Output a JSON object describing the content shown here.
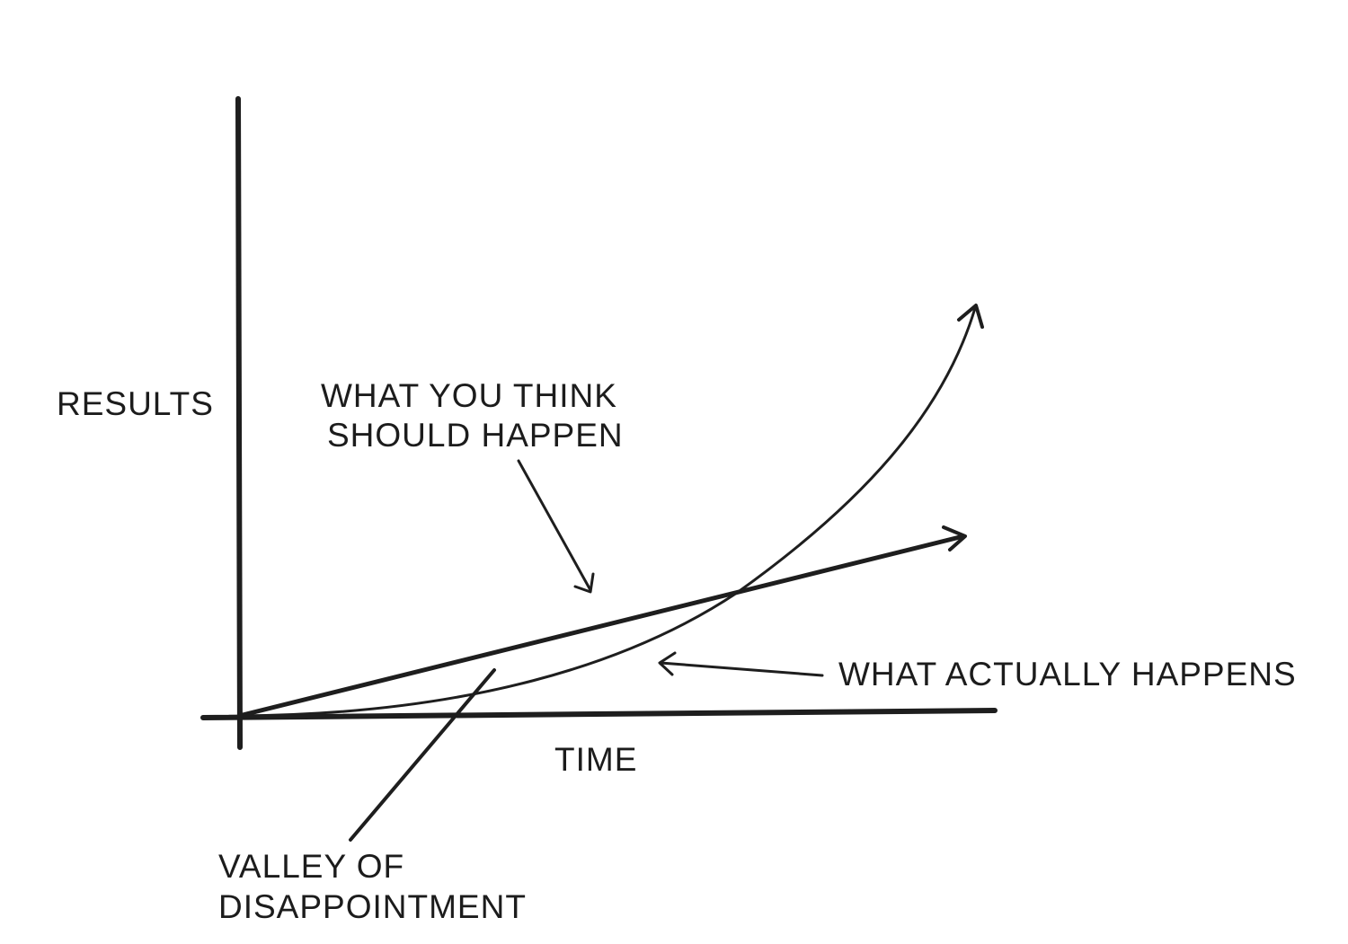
{
  "diagram": {
    "y_axis_label": "RESULTS",
    "x_axis_label": "TIME",
    "expected_line_label": [
      "WHAT YOU THINK",
      "SHOULD HAPPEN"
    ],
    "actual_curve_label": "WHAT ACTUALLY HAPPENS",
    "gap_label": [
      "VALLEY OF",
      "DISAPPOINTMENT"
    ],
    "ink_color": "#1e1e1e",
    "background_color": "#ffffff"
  }
}
